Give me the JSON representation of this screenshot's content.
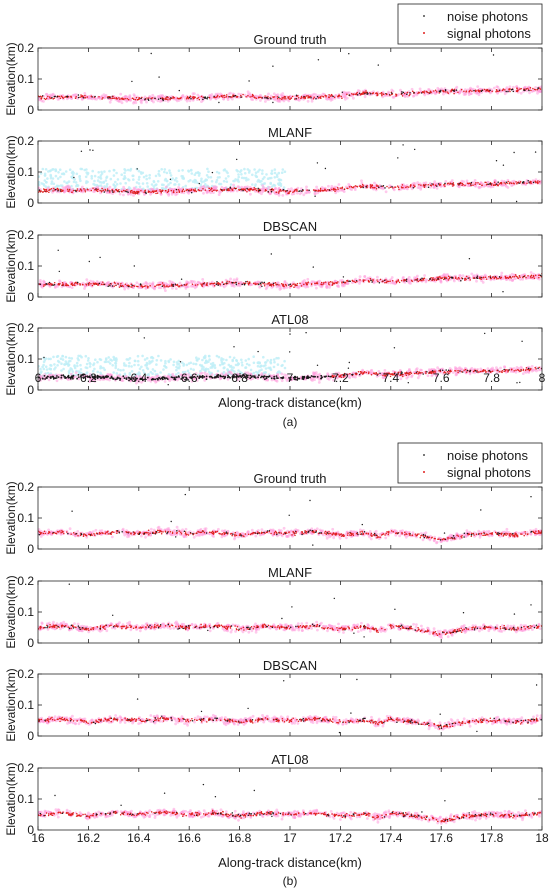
{
  "chart_data": [
    {
      "panel": "(a)",
      "type": "scatter",
      "legend": {
        "position": "top-right",
        "entries": [
          "noise photons",
          "signal photons"
        ]
      },
      "xlabel": "Along-track distance(km)",
      "xlim": [
        6,
        8
      ],
      "xticks": [
        "6",
        "6.2",
        "6.4",
        "6.6",
        "6.8",
        "7",
        "7.2",
        "7.4",
        "7.6",
        "7.8",
        "8"
      ],
      "ylabel": "Elevation(km)",
      "ylim": [
        0,
        0.2
      ],
      "yticks": [
        "0",
        "0.1",
        "0.2"
      ],
      "subplots": [
        {
          "title": "Ground truth",
          "signal_profile": {
            "x": [
              6.0,
              6.2,
              6.4,
              6.6,
              6.8,
              7.0,
              7.2,
              7.3,
              7.4,
              7.6,
              7.8,
              8.0
            ],
            "y": [
              0.04,
              0.043,
              0.035,
              0.04,
              0.045,
              0.038,
              0.045,
              0.055,
              0.05,
              0.06,
              0.062,
              0.068
            ]
          },
          "noise_density": 0.6
        },
        {
          "title": "MLANF",
          "signal_profile": {
            "x": [
              6.0,
              6.2,
              6.4,
              6.6,
              6.8,
              7.0,
              7.2,
              7.3,
              7.4,
              7.6,
              7.8,
              8.0
            ],
            "y": [
              0.04,
              0.043,
              0.035,
              0.04,
              0.045,
              0.038,
              0.045,
              0.055,
              0.05,
              0.06,
              0.062,
              0.068
            ]
          },
          "noise_density": 1.0
        },
        {
          "title": "DBSCAN",
          "signal_profile": {
            "x": [
              6.0,
              6.2,
              6.4,
              6.6,
              6.8,
              7.0,
              7.2,
              7.3,
              7.4,
              7.6,
              7.8,
              8.0
            ],
            "y": [
              0.04,
              0.043,
              0.035,
              0.04,
              0.045,
              0.038,
              0.045,
              0.055,
              0.05,
              0.06,
              0.062,
              0.068
            ]
          },
          "noise_density": 0.6
        },
        {
          "title": "ATL08",
          "signal_profile": {
            "x": [
              6.0,
              6.2,
              6.4,
              6.6,
              6.8,
              7.0,
              7.2,
              7.3,
              7.4,
              7.6,
              7.8,
              8.0
            ],
            "y": [
              0.04,
              0.043,
              0.035,
              0.04,
              0.045,
              0.038,
              0.045,
              0.055,
              0.05,
              0.06,
              0.062,
              0.068
            ]
          },
          "noise_density": 1.0,
          "signal_unlabeled_before_x": 7.15
        }
      ]
    },
    {
      "panel": "(b)",
      "type": "scatter",
      "legend": {
        "position": "top-right",
        "entries": [
          "noise photons",
          "signal photons"
        ]
      },
      "xlabel": "Along-track distance(km)",
      "xlim": [
        16,
        18
      ],
      "xticks": [
        "16",
        "16.2",
        "16.4",
        "16.6",
        "16.8",
        "17",
        "17.2",
        "17.4",
        "17.6",
        "17.8",
        "18"
      ],
      "ylabel": "Elevation(km)",
      "ylim": [
        0,
        0.2
      ],
      "yticks": [
        "0",
        "0.1",
        "0.2"
      ],
      "subplots": [
        {
          "title": "Ground truth",
          "signal_profile": {
            "x": [
              16.0,
              16.1,
              16.2,
              16.3,
              16.4,
              16.5,
              16.6,
              16.7,
              16.8,
              16.9,
              17.0,
              17.1,
              17.2,
              17.3,
              17.35,
              17.4,
              17.5,
              17.6,
              17.7,
              17.8,
              17.9,
              18.0
            ],
            "y": [
              0.05,
              0.055,
              0.045,
              0.055,
              0.05,
              0.057,
              0.05,
              0.055,
              0.045,
              0.055,
              0.05,
              0.055,
              0.045,
              0.052,
              0.04,
              0.055,
              0.045,
              0.03,
              0.045,
              0.05,
              0.045,
              0.055
            ]
          },
          "noise_density": 0.6
        },
        {
          "title": "MLANF",
          "signal_profile": {
            "x": [
              16.0,
              16.1,
              16.2,
              16.3,
              16.4,
              16.5,
              16.6,
              16.7,
              16.8,
              16.9,
              17.0,
              17.1,
              17.2,
              17.3,
              17.35,
              17.4,
              17.5,
              17.6,
              17.7,
              17.8,
              17.9,
              18.0
            ],
            "y": [
              0.05,
              0.055,
              0.045,
              0.055,
              0.05,
              0.057,
              0.05,
              0.055,
              0.045,
              0.055,
              0.05,
              0.055,
              0.045,
              0.052,
              0.04,
              0.055,
              0.045,
              0.03,
              0.045,
              0.05,
              0.045,
              0.055
            ]
          },
          "noise_density": 0.6
        },
        {
          "title": "DBSCAN",
          "signal_profile": {
            "x": [
              16.0,
              16.1,
              16.2,
              16.3,
              16.4,
              16.5,
              16.6,
              16.7,
              16.8,
              16.9,
              17.0,
              17.1,
              17.2,
              17.3,
              17.35,
              17.4,
              17.5,
              17.6,
              17.7,
              17.8,
              17.9,
              18.0
            ],
            "y": [
              0.05,
              0.055,
              0.045,
              0.055,
              0.05,
              0.057,
              0.05,
              0.055,
              0.045,
              0.055,
              0.05,
              0.055,
              0.045,
              0.052,
              0.04,
              0.055,
              0.045,
              0.03,
              0.045,
              0.05,
              0.045,
              0.055
            ]
          },
          "noise_density": 0.6
        },
        {
          "title": "ATL08",
          "signal_profile": {
            "x": [
              16.0,
              16.1,
              16.2,
              16.3,
              16.4,
              16.5,
              16.6,
              16.7,
              16.8,
              16.9,
              17.0,
              17.1,
              17.2,
              17.3,
              17.35,
              17.4,
              17.5,
              17.6,
              17.7,
              17.8,
              17.9,
              18.0
            ],
            "y": [
              0.05,
              0.055,
              0.045,
              0.055,
              0.05,
              0.057,
              0.05,
              0.055,
              0.045,
              0.055,
              0.05,
              0.055,
              0.045,
              0.052,
              0.04,
              0.055,
              0.045,
              0.03,
              0.045,
              0.05,
              0.045,
              0.055
            ]
          },
          "noise_density": 0.6
        }
      ]
    }
  ],
  "colors": {
    "noise": "#1a1a1a",
    "signal": "#e0201f",
    "band": "#ff9ddd",
    "haze": "#bfeff7"
  }
}
